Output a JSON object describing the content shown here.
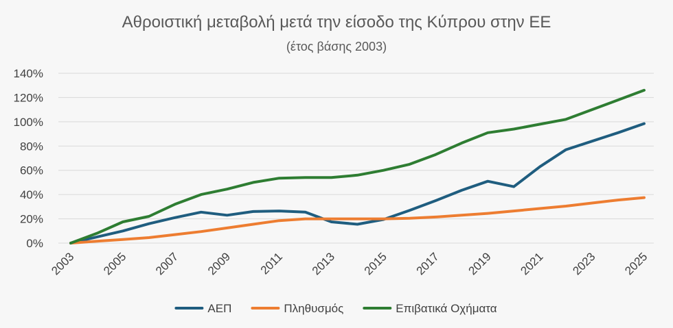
{
  "chart_data": {
    "type": "line",
    "title": "Αθροιστική μεταβολή μετά την είσοδο της Κύπρου στην ΕΕ",
    "subtitle": "(έτος βάσης 2003)",
    "xlabel": "",
    "ylabel": "",
    "x": [
      2003,
      2004,
      2005,
      2006,
      2007,
      2008,
      2009,
      2010,
      2011,
      2012,
      2013,
      2014,
      2015,
      2016,
      2017,
      2018,
      2019,
      2020,
      2021,
      2022,
      2023,
      2024,
      2025
    ],
    "x_tick_labels": [
      "2003",
      "2005",
      "2007",
      "2009",
      "2011",
      "2013",
      "2015",
      "2017",
      "2019",
      "2021",
      "2023",
      "2025"
    ],
    "y_tick_labels": [
      "0%",
      "20%",
      "40%",
      "60%",
      "80%",
      "100%",
      "120%",
      "140%"
    ],
    "ylim": [
      0,
      140
    ],
    "grid": true,
    "legend_position": "bottom",
    "series": [
      {
        "name": "ΑΕΠ",
        "color": "#1f5d7f",
        "values": [
          0,
          5,
          10,
          16,
          21,
          25.5,
          23,
          26,
          26.5,
          25.5,
          17.5,
          15.5,
          19.5,
          27,
          35,
          43.5,
          51,
          46.5,
          63,
          77,
          84,
          91,
          98.5
        ]
      },
      {
        "name": "Πληθυσμός",
        "color": "#ed7d31",
        "values": [
          0,
          1.5,
          3,
          4.5,
          7,
          9.5,
          12.5,
          15.5,
          18.5,
          20,
          20,
          20,
          20,
          20.5,
          21.5,
          23,
          24.5,
          26.5,
          28.5,
          30.5,
          33,
          35.5,
          37.5
        ]
      },
      {
        "name": "Επιβατικά Οχήματα",
        "color": "#2e7d32",
        "values": [
          0,
          8,
          17.5,
          22,
          32,
          40,
          44.5,
          50,
          53.5,
          54,
          54,
          56,
          60,
          65,
          73,
          82.5,
          91,
          94,
          98,
          102,
          110,
          118,
          126
        ]
      }
    ]
  }
}
